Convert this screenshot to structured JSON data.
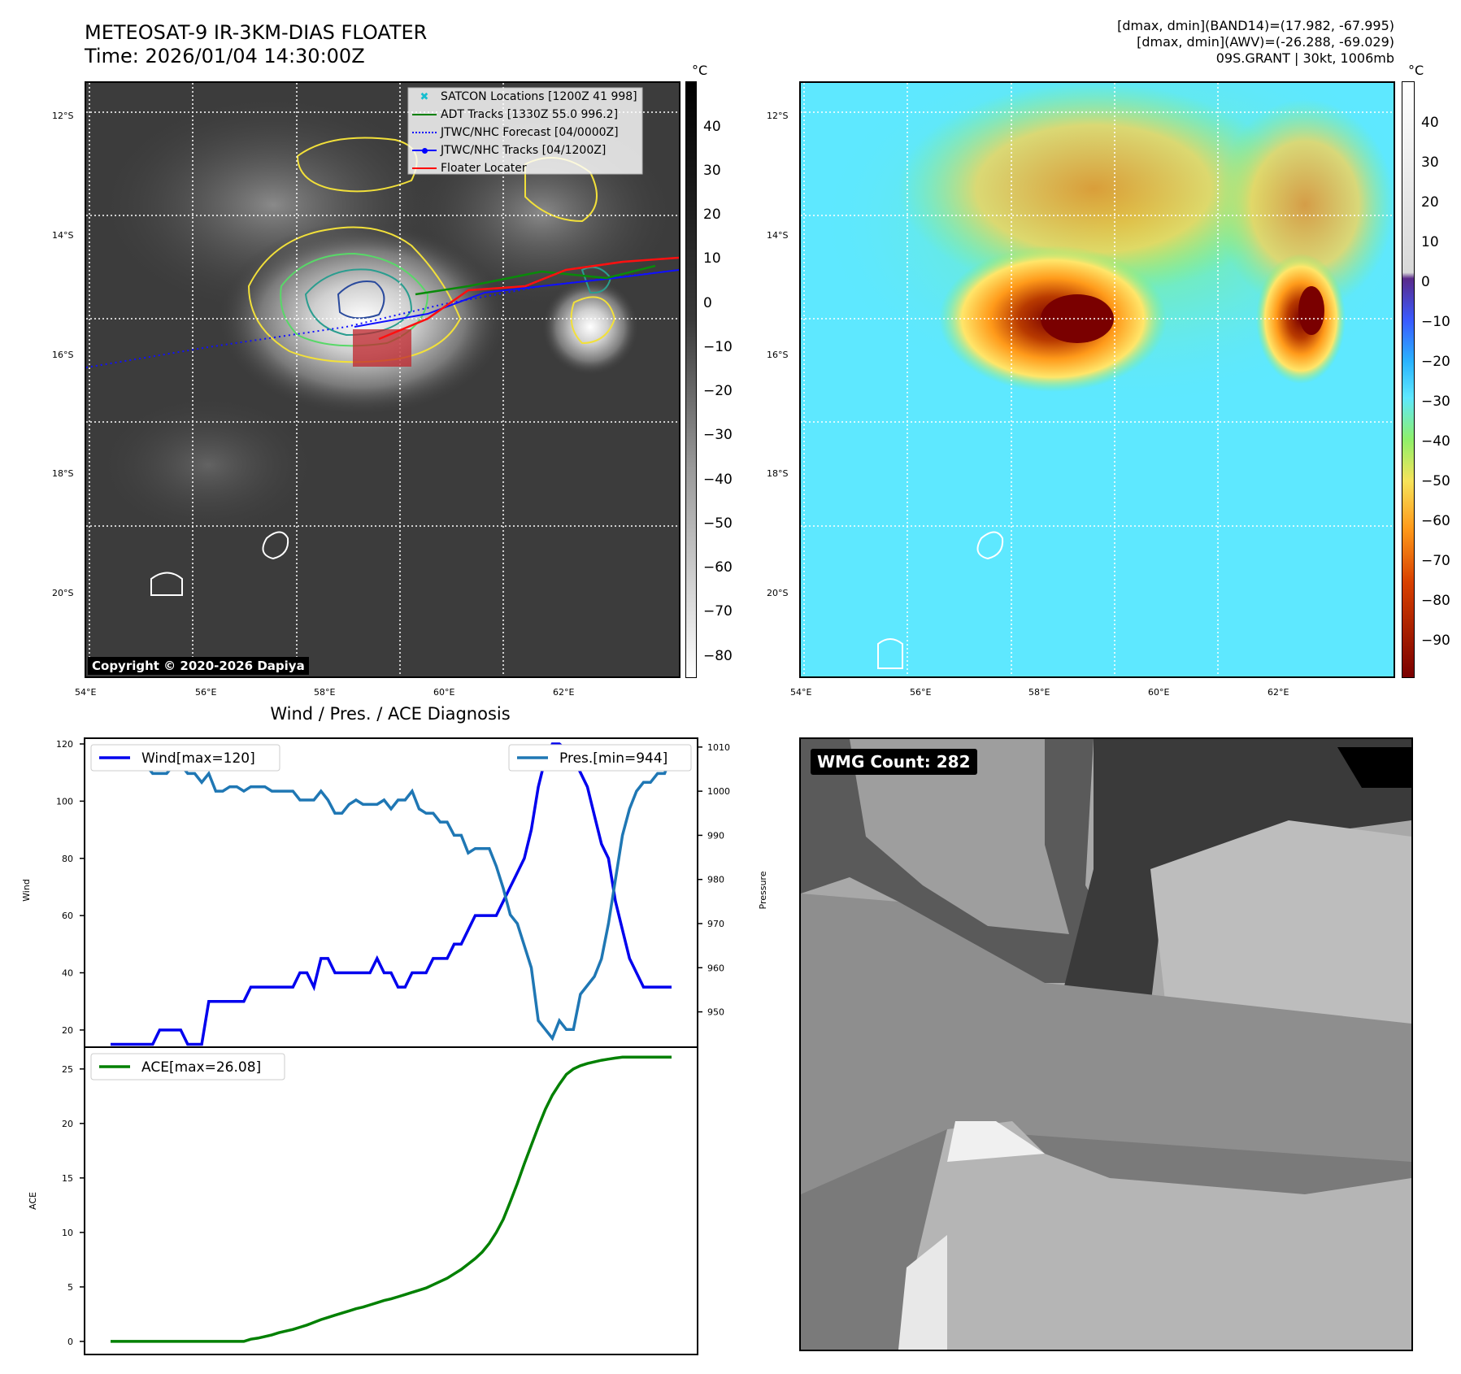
{
  "header": {
    "title_line1": "METEOSAT-9 IR-3KM-DIAS FLOATER",
    "title_line2": "Time: 2026/01/04 14:30:00Z",
    "info_line1": "[dmax, dmin](BAND14)=(17.982, -67.995)",
    "info_line2": "[dmax, dmin](AWV)=(-26.288, -69.029)",
    "info_line3": "09S.GRANT | 30kt, 1006mb"
  },
  "map_axes": {
    "lat_labels": [
      "12°S",
      "14°S",
      "16°S",
      "18°S",
      "20°S"
    ],
    "lon_labels": [
      "54°E",
      "56°E",
      "58°E",
      "60°E",
      "62°E"
    ]
  },
  "ir_panel": {
    "legend": [
      {
        "label": "SATCON Locations [1200Z 41 998]",
        "color": "#17becf",
        "style": "x"
      },
      {
        "label": "ADT Tracks [1330Z 55.0 996.2]",
        "color": "#008000",
        "style": "line"
      },
      {
        "label": "JTWC/NHC Forecast [04/0000Z]",
        "color": "#0000ff",
        "style": "dotted"
      },
      {
        "label": "JTWC/NHC Tracks [04/1200Z]",
        "color": "#0000ff",
        "style": "line-dot"
      },
      {
        "label": "Floater Locater",
        "color": "#ff0000",
        "style": "line"
      }
    ],
    "copyright": "Copyright © 2020-2026 Dapiya",
    "colorbar_unit": "°C",
    "colorbar_ticks": [
      "40",
      "30",
      "20",
      "10",
      "0",
      "−10",
      "−20",
      "−30",
      "−40",
      "−50",
      "−60",
      "−70",
      "−80"
    ]
  },
  "wv_panel": {
    "colorbar_unit": "°C",
    "colorbar_ticks": [
      "40",
      "30",
      "20",
      "10",
      "0",
      "−10",
      "−20",
      "−30",
      "−40",
      "−50",
      "−60",
      "−70",
      "−80",
      "−90"
    ],
    "colors": {
      "cold": "#7a0000",
      "warm": "#5ee8ff"
    }
  },
  "diag": {
    "title": "Wind / Pres. / ACE Diagnosis",
    "wind_axis_label": "Wind",
    "pres_axis_label": "Pressure",
    "ace_axis_label": "ACE",
    "wind_ticks": [
      "20",
      "40",
      "60",
      "80",
      "100",
      "120"
    ],
    "pres_ticks": [
      "950",
      "960",
      "970",
      "980",
      "990",
      "1000",
      "1010"
    ],
    "ace_ticks": [
      "0",
      "5",
      "10",
      "15",
      "20",
      "25"
    ],
    "wind_legend": "Wind[max=120]",
    "pres_legend": "Pres.[min=944]",
    "ace_legend": "ACE[max=26.08]"
  },
  "wmg_panel": {
    "label": "WMG Count: 282"
  },
  "chart_data": [
    {
      "type": "line",
      "title": "Wind / Pres. / ACE Diagnosis",
      "ylabel": "Wind",
      "ylim": [
        14,
        122
      ],
      "x": [
        0,
        1,
        2,
        3,
        4,
        5,
        6,
        7,
        8,
        9,
        10,
        11,
        12,
        13,
        14,
        15,
        16,
        17,
        18,
        19,
        20,
        21,
        22,
        23,
        24,
        25,
        26,
        27,
        28,
        29,
        30,
        31,
        32,
        33,
        34,
        35,
        36,
        37,
        38,
        39,
        40,
        41,
        42,
        43,
        44,
        45,
        46,
        47,
        48,
        49,
        50,
        51,
        52,
        53,
        54,
        55,
        56,
        57,
        58,
        59,
        60,
        61,
        62,
        63,
        64,
        65,
        66,
        67,
        68,
        69,
        70,
        71,
        72,
        73,
        74,
        75,
        76,
        77,
        78,
        79,
        80
      ],
      "series": [
        {
          "name": "Wind[max=120]",
          "color": "#0000ee",
          "values": [
            15,
            15,
            15,
            15,
            15,
            15,
            15,
            20,
            20,
            20,
            20,
            15,
            15,
            15,
            30,
            30,
            30,
            30,
            30,
            30,
            35,
            35,
            35,
            35,
            35,
            35,
            35,
            40,
            40,
            35,
            45,
            45,
            40,
            40,
            40,
            40,
            40,
            40,
            45,
            40,
            40,
            35,
            35,
            40,
            40,
            40,
            45,
            45,
            45,
            50,
            50,
            55,
            60,
            60,
            60,
            60,
            65,
            70,
            75,
            80,
            90,
            105,
            115,
            120,
            120,
            118,
            115,
            110,
            105,
            95,
            85,
            80,
            65,
            55,
            45,
            40,
            35,
            35,
            35,
            35,
            35
          ]
        }
      ]
    },
    {
      "type": "line",
      "ylabel": "Pressure",
      "ylim": [
        942,
        1012
      ],
      "series": [
        {
          "name": "Pres.[min=944]",
          "color": "#1f77b4",
          "values": [
            1008,
            1008,
            1006,
            1006,
            1006,
            1006,
            1004,
            1004,
            1004,
            1006,
            1006,
            1004,
            1004,
            1002,
            1004,
            1000,
            1000,
            1001,
            1001,
            1000,
            1001,
            1001,
            1001,
            1000,
            1000,
            1000,
            1000,
            998,
            998,
            998,
            1000,
            998,
            995,
            995,
            997,
            998,
            997,
            997,
            997,
            998,
            996,
            998,
            998,
            1000,
            996,
            995,
            995,
            993,
            993,
            990,
            990,
            986,
            987,
            987,
            987,
            983,
            978,
            972,
            970,
            965,
            960,
            948,
            946,
            944,
            948,
            946,
            946,
            954,
            956,
            958,
            962,
            970,
            980,
            990,
            996,
            1000,
            1002,
            1002,
            1004,
            1004,
            1008
          ]
        }
      ]
    },
    {
      "type": "area",
      "ylabel": "ACE",
      "ylim": [
        -1.2,
        27
      ],
      "series": [
        {
          "name": "ACE[max=26.08]",
          "color": "#008000",
          "values": [
            0,
            0,
            0,
            0,
            0,
            0,
            0,
            0,
            0,
            0,
            0,
            0,
            0,
            0,
            0,
            0,
            0,
            0,
            0,
            0,
            0.2,
            0.3,
            0.45,
            0.6,
            0.8,
            0.95,
            1.1,
            1.3,
            1.5,
            1.75,
            2.0,
            2.2,
            2.4,
            2.6,
            2.8,
            3.0,
            3.15,
            3.35,
            3.55,
            3.75,
            3.9,
            4.1,
            4.3,
            4.5,
            4.7,
            4.9,
            5.2,
            5.5,
            5.8,
            6.2,
            6.6,
            7.1,
            7.6,
            8.2,
            9.0,
            10.0,
            11.2,
            12.8,
            14.5,
            16.3,
            18.0,
            19.7,
            21.3,
            22.6,
            23.6,
            24.5,
            25.0,
            25.3,
            25.5,
            25.65,
            25.8,
            25.9,
            26.0,
            26.08,
            26.08,
            26.08,
            26.08,
            26.08,
            26.08,
            26.08,
            26.08
          ]
        }
      ]
    }
  ]
}
